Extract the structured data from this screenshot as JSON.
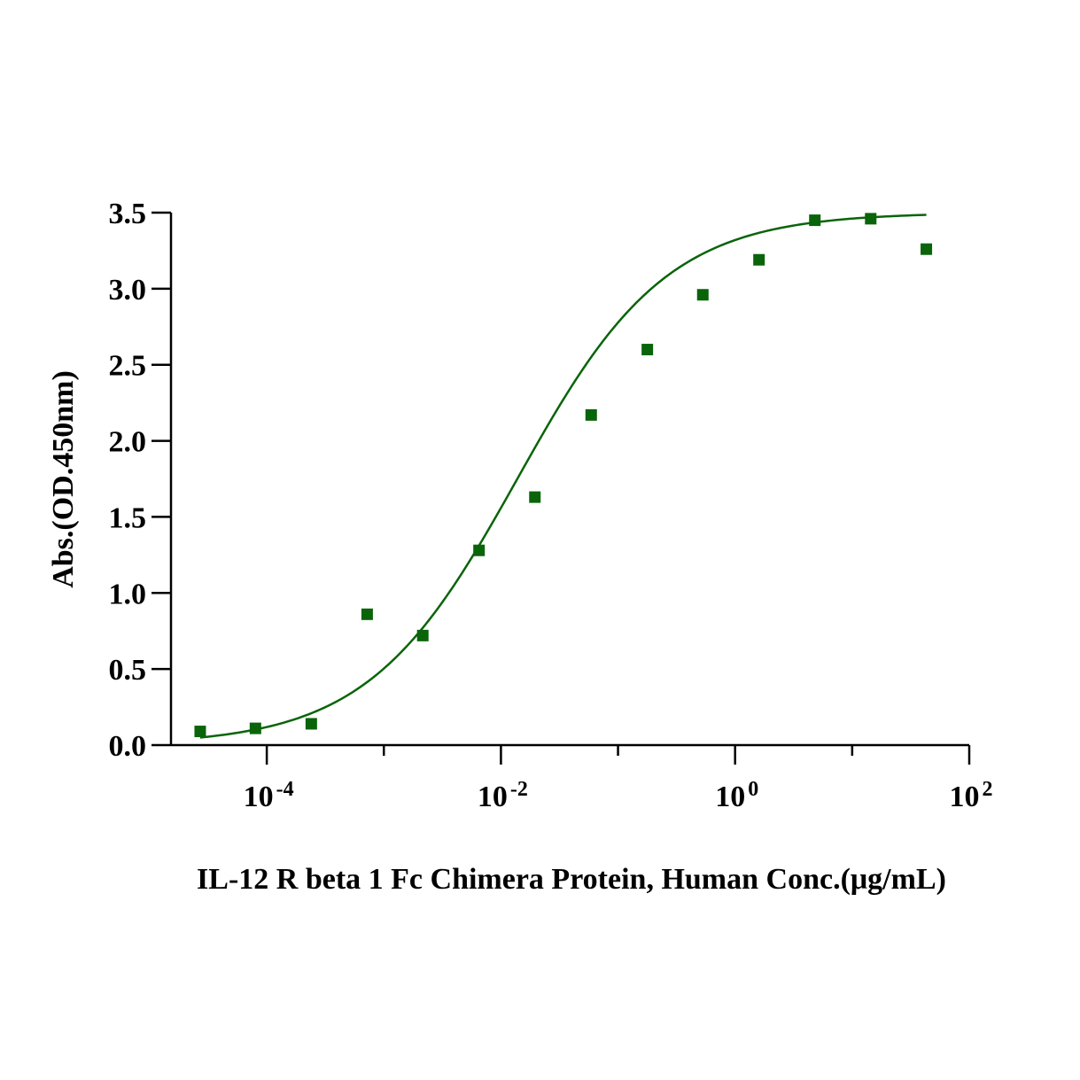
{
  "chart_data": {
    "type": "scatter",
    "xlabel": "IL-12 R beta 1 Fc Chimera Protein, Human  Conc.(μg/mL)",
    "ylabel": "Abs.(OD.450nm)",
    "x_scale": "log",
    "xlim": [
      1.52e-05,
      100
    ],
    "ylim": [
      0,
      3.5
    ],
    "y_ticks": [
      "0.0",
      "0.5",
      "1.0",
      "1.5",
      "2.0",
      "2.5",
      "3.0",
      "3.5"
    ],
    "x_ticks": [
      {
        "value": 0.0001,
        "base": "10",
        "exp": "-4"
      },
      {
        "value": 0.01,
        "base": "10",
        "exp": "-2"
      },
      {
        "value": 1,
        "base": "10",
        "exp": "0"
      },
      {
        "value": 100,
        "base": "10",
        "exp": "2"
      }
    ],
    "grid": false,
    "marker_color": "#0a640a",
    "curve_color": "#0a640a",
    "series": [
      {
        "x": [
          2.7e-05,
          8e-05,
          0.00024,
          0.00072,
          0.00215,
          0.0065,
          0.0195,
          0.059,
          0.178,
          0.53,
          1.6,
          4.8,
          14.4,
          43.0
        ],
        "y": [
          0.09,
          0.11,
          0.14,
          0.86,
          0.72,
          1.28,
          1.63,
          2.17,
          2.6,
          2.96,
          3.19,
          3.45,
          3.46,
          3.26
        ]
      }
    ],
    "fit": {
      "model": "4PL",
      "bottom": 0.0,
      "top": 3.5,
      "ec50": 0.0138,
      "hill": 0.68,
      "x_range": [
        2.7e-05,
        43.0
      ]
    }
  }
}
